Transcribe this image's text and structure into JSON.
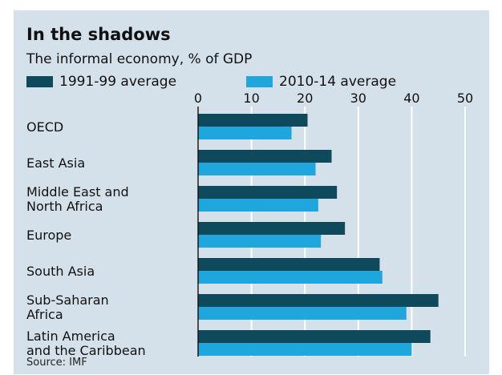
{
  "chart_data": {
    "type": "bar",
    "orientation": "horizontal",
    "title": "In the shadows",
    "subtitle": "The informal economy, % of GDP",
    "source": "Source: IMF",
    "categories": [
      [
        "OECD"
      ],
      [
        "East Asia"
      ],
      [
        "Middle East and",
        "North Africa"
      ],
      [
        "Europe"
      ],
      [
        "South Asia"
      ],
      [
        "Sub-Saharan",
        "Africa"
      ],
      [
        "Latin America",
        "and the Caribbean"
      ]
    ],
    "series": [
      {
        "name": "1991-99 average",
        "color": "#0e4a5c",
        "values": [
          20.5,
          25,
          26,
          27.5,
          34,
          45,
          43.5
        ]
      },
      {
        "name": "2010-14 average",
        "color": "#1fa6dc",
        "values": [
          17.5,
          22,
          22.5,
          23,
          34.5,
          39,
          40
        ]
      }
    ],
    "xlim": [
      0,
      50
    ],
    "xticks": [
      "0",
      "10",
      "20",
      "30",
      "40",
      "50"
    ],
    "grid": true,
    "legend_position": "top"
  }
}
